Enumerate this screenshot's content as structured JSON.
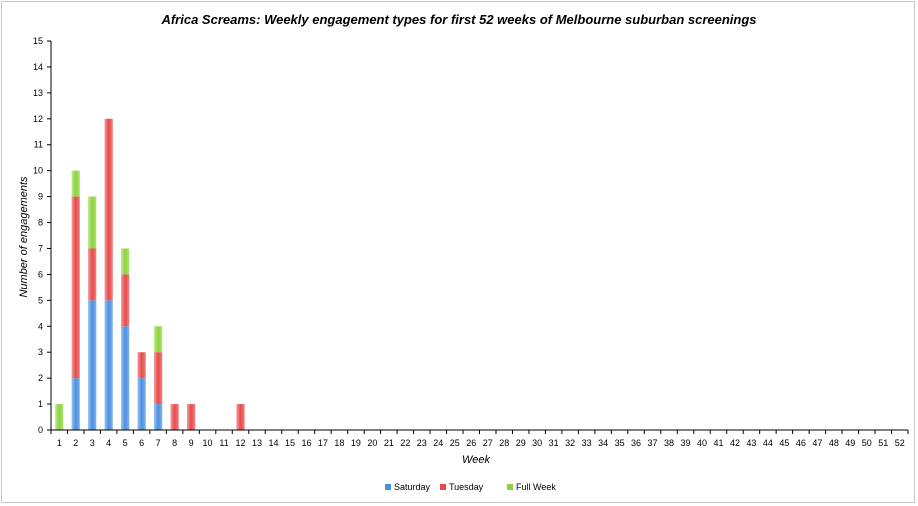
{
  "chart_data": {
    "type": "bar",
    "stacked": true,
    "title": "Africa Screams: Weekly engagement types for first 52 weeks of Melbourne suburban screenings",
    "xlabel": "Week",
    "ylabel": "Number of engagements",
    "ylim": [
      0,
      15
    ],
    "yticks": [
      0,
      1,
      2,
      3,
      4,
      5,
      6,
      7,
      8,
      9,
      10,
      11,
      12,
      13,
      14,
      15
    ],
    "grid": false,
    "legend_position": "bottom",
    "categories": [
      "1",
      "2",
      "3",
      "4",
      "5",
      "6",
      "7",
      "8",
      "9",
      "10",
      "11",
      "12",
      "13",
      "14",
      "15",
      "16",
      "17",
      "18",
      "19",
      "20",
      "21",
      "22",
      "23",
      "24",
      "25",
      "26",
      "27",
      "28",
      "29",
      "30",
      "31",
      "32",
      "33",
      "34",
      "35",
      "36",
      "37",
      "38",
      "39",
      "40",
      "41",
      "42",
      "43",
      "44",
      "45",
      "46",
      "47",
      "48",
      "49",
      "50",
      "51",
      "52"
    ],
    "series": [
      {
        "name": "Saturday",
        "color": "#4a90e2",
        "values": [
          0,
          2,
          5,
          5,
          4,
          2,
          1,
          0,
          0,
          0,
          0,
          0,
          0,
          0,
          0,
          0,
          0,
          0,
          0,
          0,
          0,
          0,
          0,
          0,
          0,
          0,
          0,
          0,
          0,
          0,
          0,
          0,
          0,
          0,
          0,
          0,
          0,
          0,
          0,
          0,
          0,
          0,
          0,
          0,
          0,
          0,
          0,
          0,
          0,
          0,
          0,
          0
        ]
      },
      {
        "name": "Tuesday",
        "color": "#e84a4a",
        "values": [
          0,
          7,
          2,
          7,
          2,
          1,
          2,
          1,
          1,
          0,
          0,
          1,
          0,
          0,
          0,
          0,
          0,
          0,
          0,
          0,
          0,
          0,
          0,
          0,
          0,
          0,
          0,
          0,
          0,
          0,
          0,
          0,
          0,
          0,
          0,
          0,
          0,
          0,
          0,
          0,
          0,
          0,
          0,
          0,
          0,
          0,
          0,
          0,
          0,
          0,
          0,
          0
        ]
      },
      {
        "name": "Full Week",
        "color": "#8cd43c",
        "values": [
          1,
          1,
          2,
          0,
          1,
          0,
          1,
          0,
          0,
          0,
          0,
          0,
          0,
          0,
          0,
          0,
          0,
          0,
          0,
          0,
          0,
          0,
          0,
          0,
          0,
          0,
          0,
          0,
          0,
          0,
          0,
          0,
          0,
          0,
          0,
          0,
          0,
          0,
          0,
          0,
          0,
          0,
          0,
          0,
          0,
          0,
          0,
          0,
          0,
          0,
          0,
          0
        ]
      }
    ]
  }
}
